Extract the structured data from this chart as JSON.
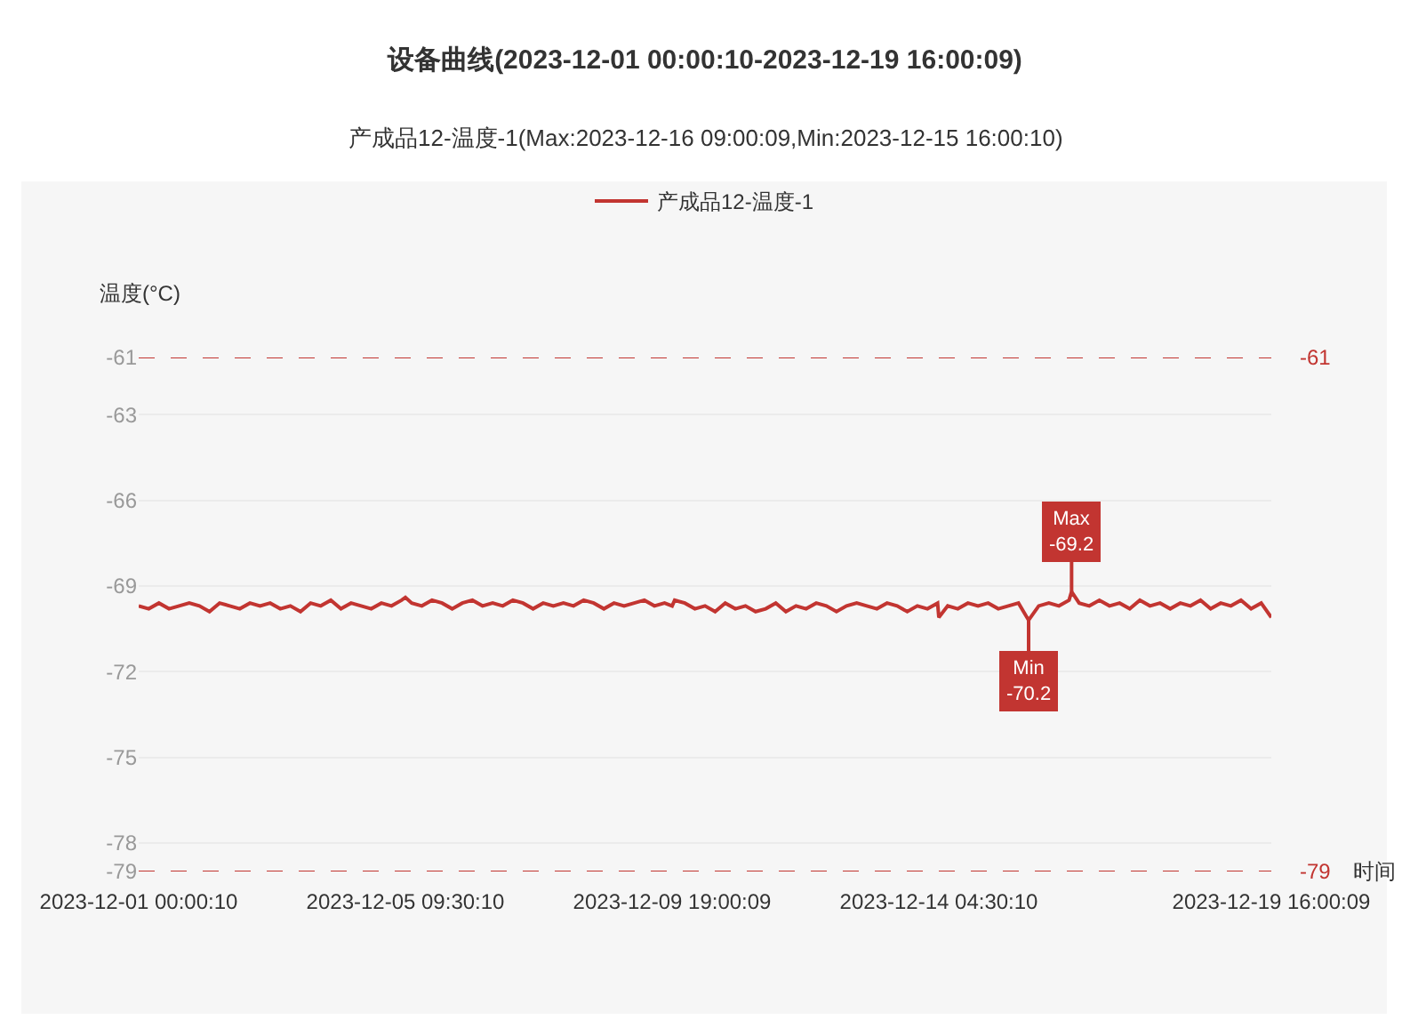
{
  "chart_data": {
    "type": "line",
    "title": "设备曲线(2023-12-01 00:00:10-2023-12-19 16:00:09)",
    "subtitle": "产成品12-温度-1(Max:2023-12-16 09:00:09,Min:2023-12-15 16:00:10)",
    "xlabel": "时间",
    "ylabel": "温度(°C)",
    "x": [
      "2023-12-01T00:00:10",
      "2023-12-01T04:00:10",
      "2023-12-01T08:00:10",
      "2023-12-01T12:00:10",
      "2023-12-01T16:00:10",
      "2023-12-01T20:00:10",
      "2023-12-02T00:00:10",
      "2023-12-02T04:00:10",
      "2023-12-02T08:00:10",
      "2023-12-02T12:00:10",
      "2023-12-02T16:00:10",
      "2023-12-02T20:00:10",
      "2023-12-03T00:00:10",
      "2023-12-03T04:00:10",
      "2023-12-03T08:00:10",
      "2023-12-03T12:00:10",
      "2023-12-03T16:00:10",
      "2023-12-03T20:00:10",
      "2023-12-04T00:00:10",
      "2023-12-04T04:00:10",
      "2023-12-04T08:00:10",
      "2023-12-04T12:00:10",
      "2023-12-04T16:00:10",
      "2023-12-04T20:00:10",
      "2023-12-05T00:00:10",
      "2023-12-05T04:00:10",
      "2023-12-05T08:00:10",
      "2023-12-05T09:30:10",
      "2023-12-05T12:00:10",
      "2023-12-05T16:00:10",
      "2023-12-05T20:00:10",
      "2023-12-06T00:00:10",
      "2023-12-06T04:00:10",
      "2023-12-06T08:00:10",
      "2023-12-06T12:00:10",
      "2023-12-06T16:00:10",
      "2023-12-06T20:00:10",
      "2023-12-07T00:00:10",
      "2023-12-07T04:00:10",
      "2023-12-07T08:00:10",
      "2023-12-07T12:00:10",
      "2023-12-07T16:00:10",
      "2023-12-07T20:00:10",
      "2023-12-08T00:00:10",
      "2023-12-08T04:00:10",
      "2023-12-08T08:00:10",
      "2023-12-08T12:00:10",
      "2023-12-08T16:00:10",
      "2023-12-08T20:00:10",
      "2023-12-09T00:00:10",
      "2023-12-09T04:00:10",
      "2023-12-09T08:00:10",
      "2023-12-09T12:00:10",
      "2023-12-09T16:00:10",
      "2023-12-09T19:00:09",
      "2023-12-09T20:00:10",
      "2023-12-10T00:00:10",
      "2023-12-10T04:00:10",
      "2023-12-10T08:00:10",
      "2023-12-10T12:00:10",
      "2023-12-10T16:00:10",
      "2023-12-10T20:00:10",
      "2023-12-11T00:00:10",
      "2023-12-11T04:00:10",
      "2023-12-11T08:00:10",
      "2023-12-11T12:00:10",
      "2023-12-11T16:00:10",
      "2023-12-11T20:00:10",
      "2023-12-12T00:00:10",
      "2023-12-12T04:00:10",
      "2023-12-12T08:00:10",
      "2023-12-12T12:00:10",
      "2023-12-12T16:00:10",
      "2023-12-12T20:00:10",
      "2023-12-13T00:00:10",
      "2023-12-13T04:00:10",
      "2023-12-13T08:00:10",
      "2023-12-13T12:00:10",
      "2023-12-13T16:00:10",
      "2023-12-13T20:00:10",
      "2023-12-14T00:00:10",
      "2023-12-14T04:00:10",
      "2023-12-14T04:30:10",
      "2023-12-14T08:00:10",
      "2023-12-14T12:00:10",
      "2023-12-14T16:00:10",
      "2023-12-14T20:00:10",
      "2023-12-15T00:00:10",
      "2023-12-15T04:00:10",
      "2023-12-15T08:00:10",
      "2023-12-15T12:00:10",
      "2023-12-15T16:00:10",
      "2023-12-15T20:00:10",
      "2023-12-16T00:00:10",
      "2023-12-16T04:00:10",
      "2023-12-16T08:00:10",
      "2023-12-16T09:00:09",
      "2023-12-16T12:00:10",
      "2023-12-16T16:00:10",
      "2023-12-16T20:00:10",
      "2023-12-17T00:00:10",
      "2023-12-17T04:00:10",
      "2023-12-17T08:00:10",
      "2023-12-17T12:00:10",
      "2023-12-17T16:00:10",
      "2023-12-17T20:00:10",
      "2023-12-18T00:00:10",
      "2023-12-18T04:00:10",
      "2023-12-18T08:00:10",
      "2023-12-18T12:00:10",
      "2023-12-18T16:00:10",
      "2023-12-18T20:00:10",
      "2023-12-19T00:00:10",
      "2023-12-19T04:00:10",
      "2023-12-19T08:00:10",
      "2023-12-19T12:00:10",
      "2023-12-19T16:00:09"
    ],
    "series": [
      {
        "name": "产成品12-温度-1",
        "color": "#c23531",
        "values": [
          -69.7,
          -69.8,
          -69.6,
          -69.8,
          -69.7,
          -69.6,
          -69.7,
          -69.9,
          -69.6,
          -69.7,
          -69.8,
          -69.6,
          -69.7,
          -69.6,
          -69.8,
          -69.7,
          -69.9,
          -69.6,
          -69.7,
          -69.5,
          -69.8,
          -69.6,
          -69.7,
          -69.8,
          -69.6,
          -69.7,
          -69.5,
          -69.4,
          -69.6,
          -69.7,
          -69.5,
          -69.6,
          -69.8,
          -69.6,
          -69.5,
          -69.7,
          -69.6,
          -69.7,
          -69.5,
          -69.6,
          -69.8,
          -69.6,
          -69.7,
          -69.6,
          -69.7,
          -69.5,
          -69.6,
          -69.8,
          -69.6,
          -69.7,
          -69.6,
          -69.5,
          -69.7,
          -69.6,
          -69.7,
          -69.5,
          -69.6,
          -69.8,
          -69.7,
          -69.9,
          -69.6,
          -69.8,
          -69.7,
          -69.9,
          -69.8,
          -69.6,
          -69.9,
          -69.7,
          -69.8,
          -69.6,
          -69.7,
          -69.9,
          -69.7,
          -69.6,
          -69.7,
          -69.8,
          -69.6,
          -69.7,
          -69.9,
          -69.7,
          -69.8,
          -69.6,
          -70.1,
          -69.7,
          -69.8,
          -69.6,
          -69.7,
          -69.6,
          -69.8,
          -69.7,
          -69.6,
          -70.2,
          -69.7,
          -69.6,
          -69.7,
          -69.5,
          -69.2,
          -69.6,
          -69.7,
          -69.5,
          -69.7,
          -69.6,
          -69.8,
          -69.5,
          -69.7,
          -69.6,
          -69.8,
          -69.6,
          -69.7,
          -69.5,
          -69.8,
          -69.6,
          -69.7,
          -69.5,
          -69.8,
          -69.6,
          -70.1
        ]
      }
    ],
    "xlim": [
      "2023-12-01T00:00:10",
      "2023-12-19T16:00:09"
    ],
    "xticks": [
      {
        "value": "2023-12-01T00:00:10",
        "label": "2023-12-01 00:00:10"
      },
      {
        "value": "2023-12-05T09:30:10",
        "label": "2023-12-05 09:30:10"
      },
      {
        "value": "2023-12-09T19:00:09",
        "label": "2023-12-09 19:00:09"
      },
      {
        "value": "2023-12-14T04:30:10",
        "label": "2023-12-14 04:30:10"
      },
      {
        "value": "2023-12-19T16:00:09",
        "label": "2023-12-19 16:00:09"
      }
    ],
    "ylim": [
      -79,
      -61
    ],
    "yticks": [
      -61,
      -63,
      -66,
      -69,
      -72,
      -75,
      -78,
      -79
    ],
    "grid": "y",
    "legend": "top",
    "line_style": "solid",
    "annotations": [
      {
        "text": "Max\n-69.2",
        "x": "2023-12-16T09:00:09",
        "y": -69.2
      },
      {
        "text": "Min\n-70.2",
        "x": "2023-12-15T16:00:10",
        "y": -70.2
      }
    ],
    "ref_lines": [
      {
        "axis": "y",
        "value": -61,
        "label": "-61",
        "color": "#c23531",
        "line_style": "dashed"
      },
      {
        "axis": "y",
        "value": -79,
        "label": "-79",
        "color": "#c23531",
        "line_style": "dashed"
      }
    ]
  }
}
